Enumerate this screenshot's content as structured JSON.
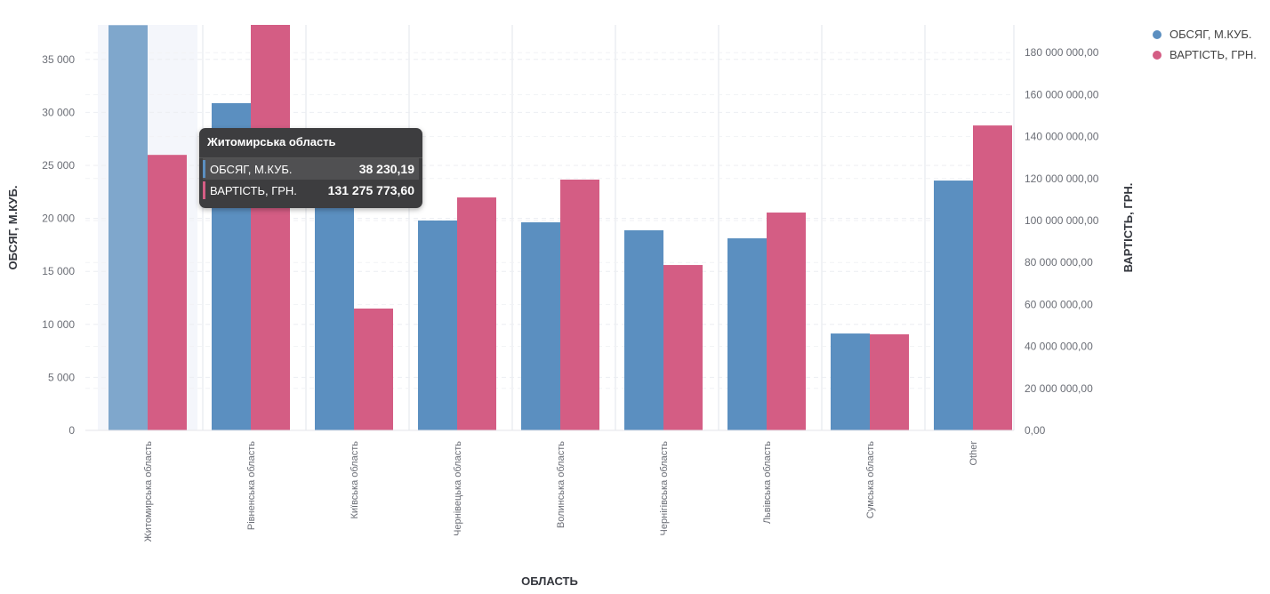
{
  "chart_data": {
    "type": "bar",
    "title": "",
    "xlabel": "ОБЛАСТЬ",
    "ylabel": "ОБСЯГ, М.КУБ.",
    "y2label": "ВАРТІСТЬ, ГРН.",
    "categories": [
      "Житомирська область",
      "Рівненська область",
      "Київська область",
      "Чернівецька область",
      "Волинська область",
      "Чернігівська область",
      "Львівська область",
      "Сумська область",
      "Other"
    ],
    "series": [
      {
        "name": "ОБСЯГ, М.КУБ.",
        "axis": "left",
        "color": "#5b8fc0",
        "values": [
          38230.19,
          30870,
          21500,
          19800,
          19630,
          18880,
          18120,
          9140,
          23570
        ]
      },
      {
        "name": "ВАРТІСТЬ, ГРН.",
        "axis": "right",
        "color": "#d45d84",
        "values": [
          131275773.6,
          195000000,
          58050000,
          111000000,
          119500000,
          78800000,
          103800000,
          45800000,
          145300000
        ]
      }
    ],
    "ylim": [
      0,
      38230
    ],
    "y2lim": [
      0,
      193000000
    ],
    "yticks": [
      "0",
      "5 000",
      "10 000",
      "15 000",
      "20 000",
      "25 000",
      "30 000",
      "35 000"
    ],
    "y2ticks": [
      "0,00",
      "20 000 000,00",
      "40 000 000,00",
      "60 000 000,00",
      "80 000 000,00",
      "100 000 000,00",
      "120 000 000,00",
      "140 000 000,00",
      "160 000 000,00",
      "180 000 000,00"
    ],
    "legend": "top-right",
    "grid": true,
    "highlighted_category": 0
  },
  "tooltip": {
    "title": "Житомирська область",
    "rows": [
      {
        "label": "ОБСЯГ, М.КУБ.",
        "value": "38 230,19",
        "color": "#5b8fc0"
      },
      {
        "label": "ВАРТІСТЬ, ГРН.",
        "value": "131 275 773,60",
        "color": "#d45d84"
      }
    ]
  }
}
